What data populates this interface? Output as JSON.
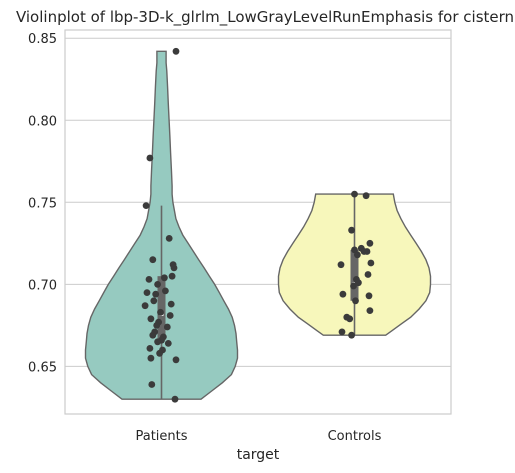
{
  "chart_data": {
    "type": "violin",
    "title": "Violinplot of lbp-3D-k_glrlm_LowGrayLevelRunEmphasis for cistern",
    "xlabel": "target",
    "ylabel": "",
    "ylim": [
      0.621,
      0.855
    ],
    "yticks": [
      "0.65",
      "0.70",
      "0.75",
      "0.80",
      "0.85"
    ],
    "ytick_values": [
      0.65,
      0.7,
      0.75,
      0.8,
      0.85
    ],
    "grid": true,
    "categories": [
      "Patients",
      "Controls"
    ],
    "colors": {
      "Patients": "#96cac0",
      "Controls": "#f7f7bb"
    },
    "series": [
      {
        "name": "Patients",
        "range": [
          0.63,
          0.842
        ],
        "whisker": [
          0.63,
          0.748
        ],
        "quartiles": [
          0.666,
          0.705
        ],
        "median": 0.682,
        "density": [
          [
            0.63,
            0.52
          ],
          [
            0.635,
            0.66
          ],
          [
            0.64,
            0.8
          ],
          [
            0.645,
            0.92
          ],
          [
            0.65,
            0.97
          ],
          [
            0.655,
            1.0
          ],
          [
            0.66,
            1.0
          ],
          [
            0.665,
            0.99
          ],
          [
            0.67,
            0.98
          ],
          [
            0.675,
            0.96
          ],
          [
            0.68,
            0.93
          ],
          [
            0.685,
            0.88
          ],
          [
            0.69,
            0.82
          ],
          [
            0.695,
            0.76
          ],
          [
            0.7,
            0.7
          ],
          [
            0.705,
            0.63
          ],
          [
            0.71,
            0.56
          ],
          [
            0.715,
            0.49
          ],
          [
            0.72,
            0.42
          ],
          [
            0.725,
            0.35
          ],
          [
            0.73,
            0.28
          ],
          [
            0.735,
            0.23
          ],
          [
            0.74,
            0.19
          ],
          [
            0.745,
            0.17
          ],
          [
            0.75,
            0.15
          ],
          [
            0.755,
            0.14
          ],
          [
            0.76,
            0.14
          ],
          [
            0.77,
            0.13
          ],
          [
            0.78,
            0.12
          ],
          [
            0.79,
            0.11
          ],
          [
            0.8,
            0.1
          ],
          [
            0.81,
            0.09
          ],
          [
            0.82,
            0.08
          ],
          [
            0.83,
            0.07
          ],
          [
            0.835,
            0.06
          ],
          [
            0.842,
            0.06
          ]
        ],
        "points": [
          [
            0.15,
            0.842
          ],
          [
            -0.12,
            0.777
          ],
          [
            -0.16,
            0.748
          ],
          [
            0.08,
            0.728
          ],
          [
            -0.09,
            0.715
          ],
          [
            0.12,
            0.712
          ],
          [
            0.13,
            0.71
          ],
          [
            0.11,
            0.705
          ],
          [
            -0.13,
            0.703
          ],
          [
            0.03,
            0.704
          ],
          [
            -0.04,
            0.7
          ],
          [
            -0.15,
            0.695
          ],
          [
            -0.06,
            0.694
          ],
          [
            0.04,
            0.696
          ],
          [
            -0.08,
            0.69
          ],
          [
            -0.17,
            0.687
          ],
          [
            0.1,
            0.688
          ],
          [
            -0.01,
            0.683
          ],
          [
            0.09,
            0.681
          ],
          [
            -0.03,
            0.677
          ],
          [
            -0.11,
            0.679
          ],
          [
            -0.05,
            0.675
          ],
          [
            0.06,
            0.674
          ],
          [
            -0.07,
            0.671
          ],
          [
            -0.09,
            0.669
          ],
          [
            0.02,
            0.668
          ],
          [
            0.0,
            0.666
          ],
          [
            -0.04,
            0.665
          ],
          [
            0.07,
            0.664
          ],
          [
            -0.12,
            0.661
          ],
          [
            0.01,
            0.66
          ],
          [
            -0.02,
            0.658
          ],
          [
            -0.11,
            0.655
          ],
          [
            0.15,
            0.654
          ],
          [
            -0.1,
            0.639
          ],
          [
            0.14,
            0.63
          ]
        ]
      },
      {
        "name": "Controls",
        "range": [
          0.669,
          0.755
        ],
        "whisker": [
          0.669,
          0.755
        ],
        "quartiles": [
          0.69,
          0.721
        ],
        "median": 0.7,
        "density": [
          [
            0.669,
            0.41
          ],
          [
            0.672,
            0.5
          ],
          [
            0.676,
            0.62
          ],
          [
            0.68,
            0.74
          ],
          [
            0.685,
            0.85
          ],
          [
            0.69,
            0.94
          ],
          [
            0.695,
            0.99
          ],
          [
            0.7,
            1.0
          ],
          [
            0.705,
            1.0
          ],
          [
            0.71,
            0.98
          ],
          [
            0.715,
            0.94
          ],
          [
            0.72,
            0.88
          ],
          [
            0.725,
            0.81
          ],
          [
            0.73,
            0.74
          ],
          [
            0.735,
            0.67
          ],
          [
            0.74,
            0.61
          ],
          [
            0.745,
            0.56
          ],
          [
            0.75,
            0.53
          ],
          [
            0.755,
            0.51
          ]
        ],
        "points": [
          [
            0.0,
            0.755
          ],
          [
            0.12,
            0.754
          ],
          [
            -0.03,
            0.733
          ],
          [
            0.16,
            0.725
          ],
          [
            0.07,
            0.722
          ],
          [
            0.0,
            0.721
          ],
          [
            0.13,
            0.72
          ],
          [
            0.1,
            0.72
          ],
          [
            0.03,
            0.718
          ],
          [
            0.17,
            0.713
          ],
          [
            -0.14,
            0.712
          ],
          [
            0.02,
            0.703
          ],
          [
            0.14,
            0.706
          ],
          [
            -0.01,
            0.699
          ],
          [
            0.04,
            0.701
          ],
          [
            -0.12,
            0.694
          ],
          [
            0.15,
            0.693
          ],
          [
            0.01,
            0.69
          ],
          [
            0.16,
            0.684
          ],
          [
            -0.08,
            0.68
          ],
          [
            -0.05,
            0.679
          ],
          [
            -0.13,
            0.671
          ],
          [
            -0.03,
            0.669
          ]
        ]
      }
    ]
  }
}
